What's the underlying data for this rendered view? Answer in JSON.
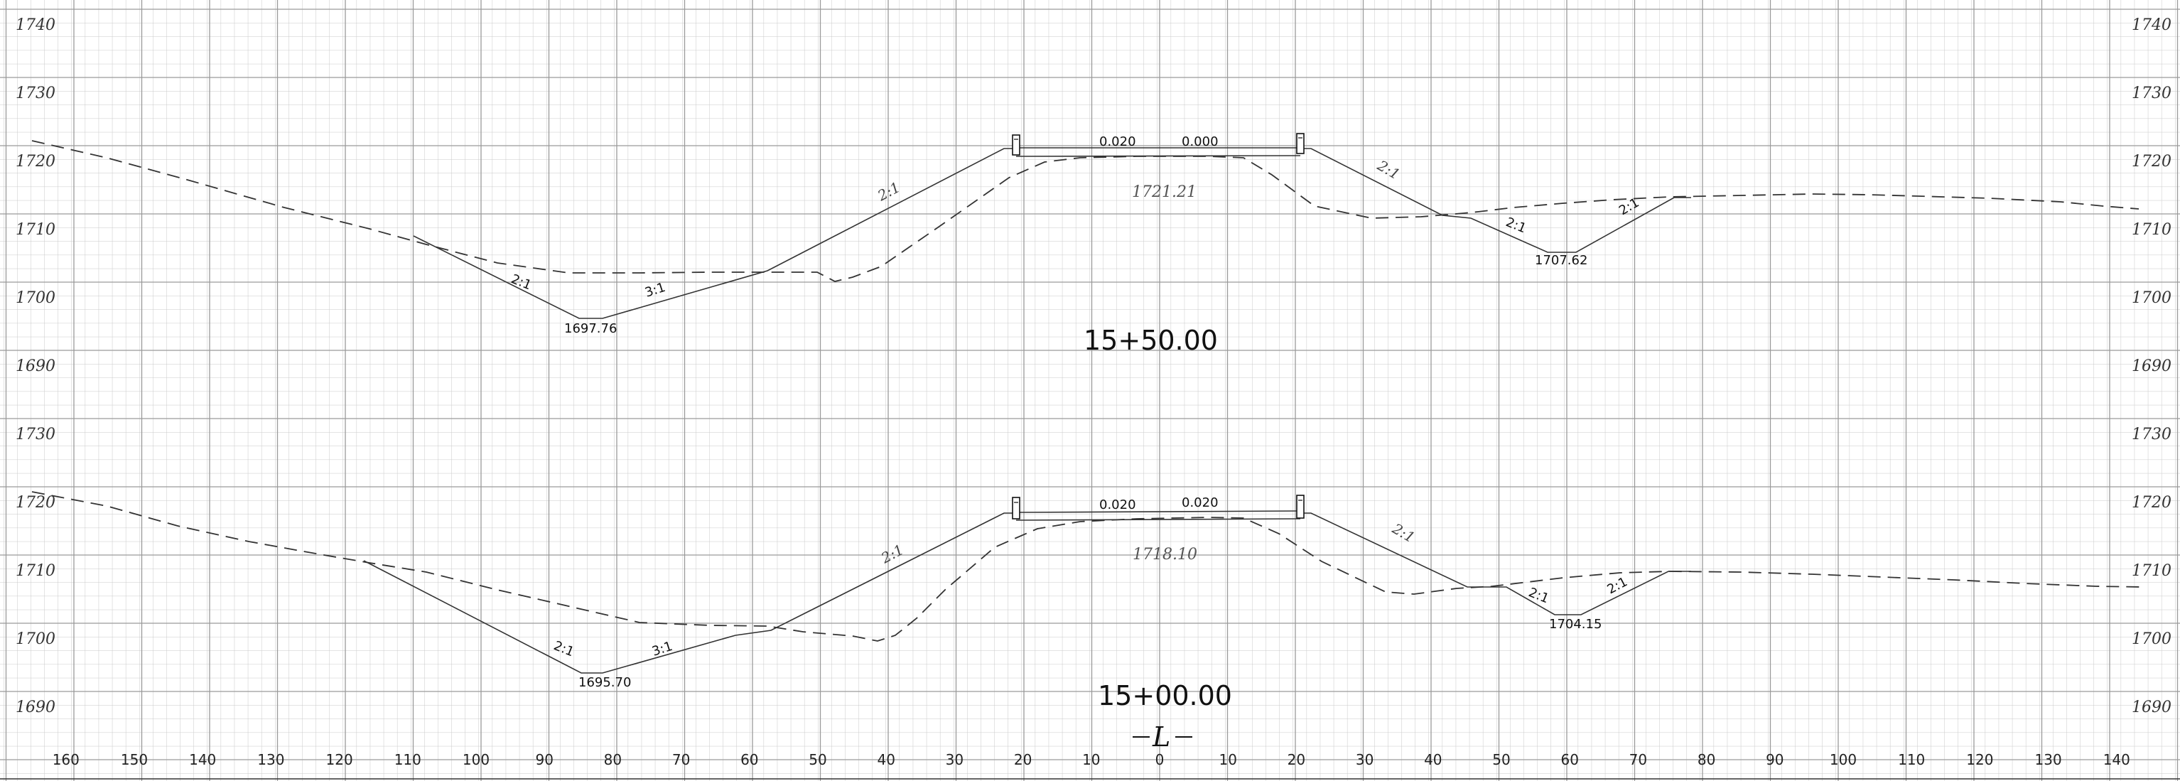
{
  "left_elevations": [
    "1740",
    "1730",
    "1720",
    "1710",
    "1700",
    "1690",
    "1730",
    "1720",
    "1710",
    "1700",
    "1690"
  ],
  "right_elevations": [
    "1740",
    "1730",
    "1720",
    "1710",
    "1700",
    "1690",
    "1730",
    "1720",
    "1710",
    "1700",
    "1690"
  ],
  "offsets": [
    "160",
    "150",
    "140",
    "130",
    "120",
    "110",
    "100",
    "90",
    "80",
    "70",
    "60",
    "50",
    "40",
    "30",
    "20",
    "10",
    "0",
    "10",
    "20",
    "30",
    "40",
    "50",
    "60",
    "70",
    "80",
    "90",
    "100",
    "110",
    "120",
    "130",
    "140"
  ],
  "sections": [
    {
      "station": "15+50.00",
      "grade_elevation": "1721.21",
      "cross_slope_left": "0.020",
      "cross_slope_right": "0.000",
      "left_ditch_elevation": "1697.76",
      "right_ditch_elevation": "1707.62",
      "left_ditch_slopes": [
        "2:1",
        "3:1"
      ],
      "left_fill_slope": "2:1",
      "right_fill_slope": "2:1",
      "right_ditch_slopes": [
        "2:1",
        "2:1"
      ]
    },
    {
      "station": "15+00.00",
      "grade_elevation": "1718.10",
      "cross_slope_left": "0.020",
      "cross_slope_right": "0.020",
      "left_ditch_elevation": "1695.70",
      "right_ditch_elevation": "1704.15",
      "left_ditch_slopes": [
        "2:1",
        "3:1"
      ],
      "left_fill_slope": "2:1",
      "right_fill_slope": "2:1",
      "right_ditch_slopes": [
        "2:1",
        "2:1"
      ]
    }
  ],
  "centerline_symbol": "L"
}
